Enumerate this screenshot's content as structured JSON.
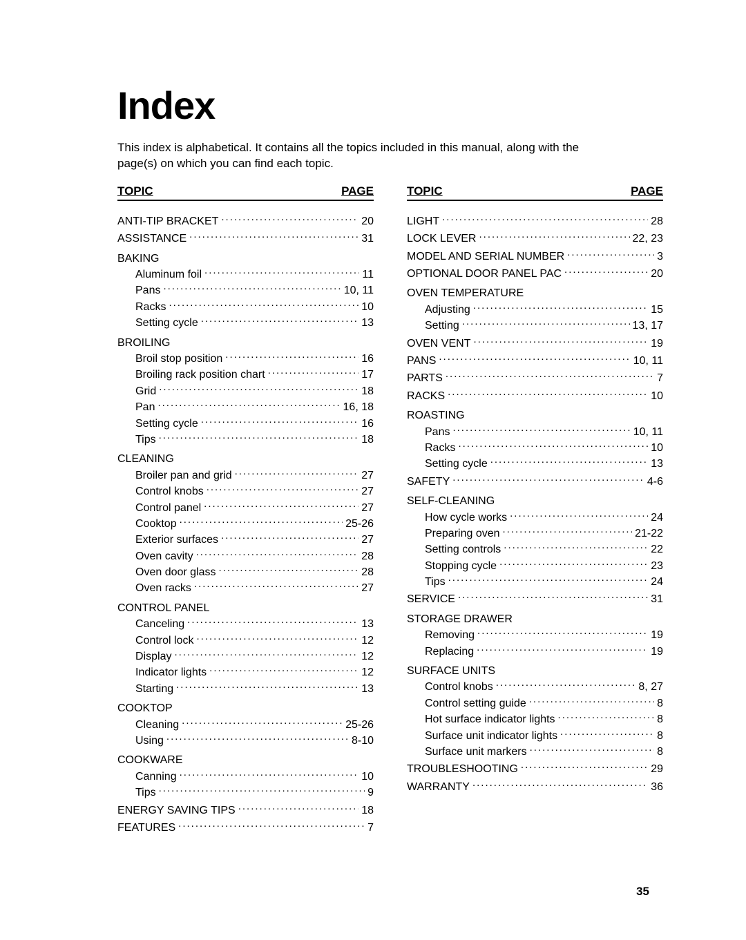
{
  "title": "Index",
  "intro": "This index is alphabetical. It contains all the topics included in this manual, along with the page(s) on which you can find each topic.",
  "header_topic": "TOPIC",
  "header_page": "PAGE",
  "page_number": "35",
  "colors": {
    "background": "#ffffff",
    "text": "#000000",
    "rule": "#000000"
  },
  "typography": {
    "title_fontsize_pt": 42,
    "body_fontsize_pt": 12,
    "header_fontsize_pt": 12,
    "font_family": "Arial"
  },
  "left_column": [
    {
      "type": "topic",
      "label": "ANTI-TIP BRACKET",
      "page": "20"
    },
    {
      "type": "topic",
      "label": "ASSISTANCE",
      "page": "31"
    },
    {
      "type": "heading",
      "label": "BAKING"
    },
    {
      "type": "sub",
      "label": "Aluminum foil",
      "page": "11"
    },
    {
      "type": "sub",
      "label": "Pans",
      "page": "10, 11"
    },
    {
      "type": "sub",
      "label": "Racks",
      "page": "10"
    },
    {
      "type": "sub",
      "label": "Setting cycle",
      "page": "13"
    },
    {
      "type": "heading",
      "label": "BROILING"
    },
    {
      "type": "sub",
      "label": "Broil stop position",
      "page": "16"
    },
    {
      "type": "sub",
      "label": "Broiling rack position chart",
      "page": "17"
    },
    {
      "type": "sub",
      "label": "Grid",
      "page": "18"
    },
    {
      "type": "sub",
      "label": "Pan",
      "page": "16, 18"
    },
    {
      "type": "sub",
      "label": "Setting cycle",
      "page": "16"
    },
    {
      "type": "sub",
      "label": "Tips",
      "page": "18"
    },
    {
      "type": "heading",
      "label": "CLEANING"
    },
    {
      "type": "sub",
      "label": "Broiler pan and grid",
      "page": "27"
    },
    {
      "type": "sub",
      "label": "Control knobs",
      "page": "27"
    },
    {
      "type": "sub",
      "label": "Control panel",
      "page": "27"
    },
    {
      "type": "sub",
      "label": "Cooktop",
      "page": "25-26"
    },
    {
      "type": "sub",
      "label": "Exterior surfaces",
      "page": "27"
    },
    {
      "type": "sub",
      "label": "Oven cavity",
      "page": "28"
    },
    {
      "type": "sub",
      "label": "Oven door glass",
      "page": "28"
    },
    {
      "type": "sub",
      "label": "Oven racks",
      "page": "27"
    },
    {
      "type": "heading",
      "label": "CONTROL PANEL"
    },
    {
      "type": "sub",
      "label": "Canceling",
      "page": "13"
    },
    {
      "type": "sub",
      "label": "Control lock",
      "page": "12"
    },
    {
      "type": "sub",
      "label": "Display",
      "page": "12"
    },
    {
      "type": "sub",
      "label": "Indicator lights",
      "page": "12"
    },
    {
      "type": "sub",
      "label": "Starting",
      "page": "13"
    },
    {
      "type": "heading",
      "label": "COOKTOP"
    },
    {
      "type": "sub",
      "label": "Cleaning",
      "page": "25-26"
    },
    {
      "type": "sub",
      "label": "Using",
      "page": "8-10"
    },
    {
      "type": "heading",
      "label": "COOKWARE"
    },
    {
      "type": "sub",
      "label": "Canning",
      "page": "10"
    },
    {
      "type": "sub",
      "label": "Tips",
      "page": "9"
    },
    {
      "type": "topic",
      "label": "ENERGY SAVING TIPS",
      "page": "18"
    },
    {
      "type": "topic",
      "label": "FEATURES",
      "page": "7"
    }
  ],
  "right_column": [
    {
      "type": "topic",
      "label": "LIGHT",
      "page": "28"
    },
    {
      "type": "topic",
      "label": "LOCK LEVER",
      "page": "22, 23"
    },
    {
      "type": "topic",
      "label": "MODEL AND SERIAL NUMBER",
      "page": "3"
    },
    {
      "type": "topic",
      "label": "OPTIONAL DOOR PANEL PAC",
      "page": "20"
    },
    {
      "type": "heading",
      "label": "OVEN TEMPERATURE"
    },
    {
      "type": "sub",
      "label": "Adjusting",
      "page": "15"
    },
    {
      "type": "sub",
      "label": "Setting",
      "page": "13, 17"
    },
    {
      "type": "topic",
      "label": "OVEN VENT",
      "page": "19"
    },
    {
      "type": "topic",
      "label": "PANS",
      "page": "10, 11"
    },
    {
      "type": "topic",
      "label": "PARTS",
      "page": "7"
    },
    {
      "type": "topic",
      "label": "RACKS",
      "page": "10"
    },
    {
      "type": "heading",
      "label": "ROASTING"
    },
    {
      "type": "sub",
      "label": "Pans",
      "page": "10, 11"
    },
    {
      "type": "sub",
      "label": "Racks",
      "page": "10"
    },
    {
      "type": "sub",
      "label": "Setting cycle",
      "page": "13"
    },
    {
      "type": "topic",
      "label": "SAFETY",
      "page": "4-6"
    },
    {
      "type": "heading",
      "label": "SELF-CLEANING"
    },
    {
      "type": "sub",
      "label": "How cycle works",
      "page": "24"
    },
    {
      "type": "sub",
      "label": "Preparing oven",
      "page": "21-22"
    },
    {
      "type": "sub",
      "label": "Setting controls",
      "page": "22"
    },
    {
      "type": "sub",
      "label": "Stopping cycle",
      "page": "23"
    },
    {
      "type": "sub",
      "label": "Tips",
      "page": "24"
    },
    {
      "type": "topic",
      "label": "SERVICE",
      "page": "31"
    },
    {
      "type": "heading",
      "label": "STORAGE DRAWER"
    },
    {
      "type": "sub",
      "label": "Removing",
      "page": "19"
    },
    {
      "type": "sub",
      "label": "Replacing",
      "page": "19"
    },
    {
      "type": "heading",
      "label": "SURFACE UNITS"
    },
    {
      "type": "sub",
      "label": "Control knobs",
      "page": "8, 27"
    },
    {
      "type": "sub",
      "label": "Control setting guide",
      "page": "8"
    },
    {
      "type": "sub",
      "label": "Hot surface indicator lights",
      "page": "8"
    },
    {
      "type": "sub",
      "label": "Surface unit indicator lights",
      "page": "8"
    },
    {
      "type": "sub",
      "label": "Surface unit markers",
      "page": "8"
    },
    {
      "type": "topic",
      "label": "TROUBLESHOOTING",
      "page": "29"
    },
    {
      "type": "topic",
      "label": "WARRANTY",
      "page": "36"
    }
  ]
}
